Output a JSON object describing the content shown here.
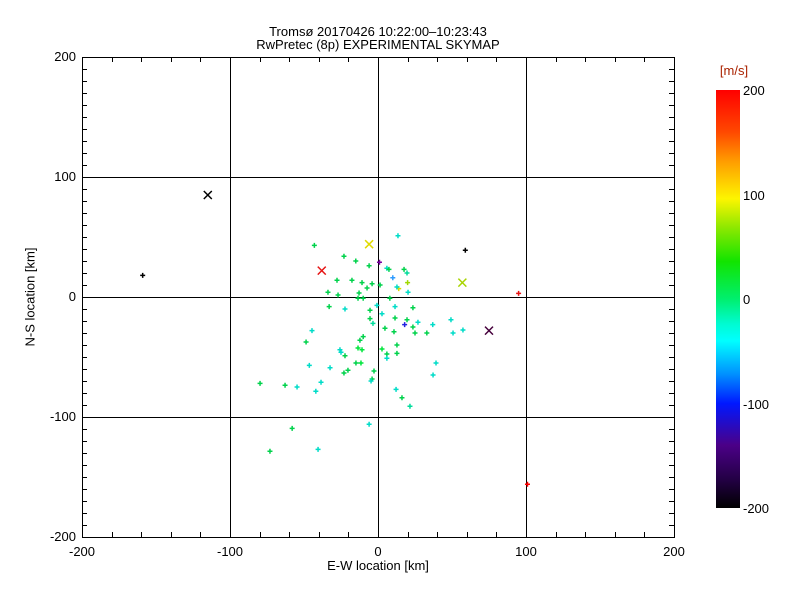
{
  "titles": {
    "line1": "Tromsø 20170426 10:22:00–10:23:43",
    "line2": "RwPretec (8p) EXPERIMENTAL SKYMAP"
  },
  "chart_data": {
    "type": "scatter",
    "title": "Tromsø 20170426 10:22:00–10:23:43 RwPretec (8p) EXPERIMENTAL SKYMAP",
    "xlabel": "E-W location [km]",
    "ylabel": "N-S location [km]",
    "xlim": [
      -200,
      200
    ],
    "ylim": [
      -200,
      200
    ],
    "xticks": [
      -200,
      -100,
      0,
      100,
      200
    ],
    "yticks": [
      -200,
      -100,
      0,
      100,
      200
    ],
    "x_minor_step": 20,
    "y_minor_step": 10,
    "grid": true,
    "axis_color": "#000000",
    "colorbar": {
      "label": "[m/s]",
      "label_color": "#aa2200",
      "min": -200,
      "max": 200,
      "ticks": [
        200,
        100,
        0,
        -100,
        -200
      ],
      "gradient": [
        [
          "0%",
          "#ff0000"
        ],
        [
          "10%",
          "#ff4800"
        ],
        [
          "17%",
          "#ff9c00"
        ],
        [
          "26%",
          "#fdf500"
        ],
        [
          "33%",
          "#8ce800"
        ],
        [
          "41%",
          "#12e400"
        ],
        [
          "50%",
          "#00ef6e"
        ],
        [
          "56%",
          "#00fbd2"
        ],
        [
          "60%",
          "#00ffff"
        ],
        [
          "68%",
          "#0090ff"
        ],
        [
          "75%",
          "#0018ff"
        ],
        [
          "85%",
          "#4b0087"
        ],
        [
          "93%",
          "#240046"
        ],
        [
          "100%",
          "#000000"
        ]
      ]
    },
    "points": [
      {
        "x": -115,
        "y": 85,
        "c": "#000000",
        "m": "x"
      },
      {
        "x": -159,
        "y": 18,
        "c": "#000000",
        "m": "+"
      },
      {
        "x": -38,
        "y": 22,
        "c": "#e61414",
        "m": "x"
      },
      {
        "x": -6,
        "y": 44,
        "c": "#e0da00",
        "m": "x"
      },
      {
        "x": 57,
        "y": 12,
        "c": "#a8d400",
        "m": "x"
      },
      {
        "x": 75,
        "y": -28,
        "c": "#46003c",
        "m": "x"
      },
      {
        "x": 59,
        "y": 39,
        "c": "#000000",
        "m": "+"
      },
      {
        "x": 95,
        "y": 3,
        "c": "#e61414",
        "m": "+"
      },
      {
        "x": 101,
        "y": -156,
        "c": "#ff0000",
        "m": "+"
      },
      {
        "x": 1,
        "y": 29,
        "c": "#7a00a0",
        "m": "+"
      },
      {
        "x": 18,
        "y": -23,
        "c": "#2222e0",
        "m": "+"
      },
      {
        "x": 10,
        "y": 16,
        "c": "#2e9bff",
        "m": "+"
      },
      {
        "x": 14,
        "y": 7,
        "c": "#ded800",
        "m": "+"
      },
      {
        "x": 20,
        "y": 12,
        "c": "#a0d800",
        "m": "+"
      },
      {
        "x": 13.5,
        "y": 51,
        "c": "#00dcc8",
        "m": "+"
      },
      {
        "x": -43,
        "y": 43,
        "c": "#00d24b",
        "m": "+"
      },
      {
        "x": -23,
        "y": 34,
        "c": "#00d24b",
        "m": "+"
      },
      {
        "x": -15,
        "y": 30,
        "c": "#00d24b",
        "m": "+"
      },
      {
        "x": -6,
        "y": 26,
        "c": "#00d24b",
        "m": "+"
      },
      {
        "x": 6,
        "y": 24,
        "c": "#00dcc8",
        "m": "+"
      },
      {
        "x": 17.6,
        "y": 23,
        "c": "#00d24b",
        "m": "+"
      },
      {
        "x": 7.4,
        "y": 23,
        "c": "#00d24b",
        "m": "+"
      },
      {
        "x": 19.6,
        "y": 20,
        "c": "#00dc9c",
        "m": "+"
      },
      {
        "x": -27.7,
        "y": 14,
        "c": "#00d24b",
        "m": "+"
      },
      {
        "x": -17.6,
        "y": 14,
        "c": "#00d24b",
        "m": "+"
      },
      {
        "x": -10.8,
        "y": 12,
        "c": "#00d24b",
        "m": "+"
      },
      {
        "x": -4,
        "y": 11,
        "c": "#00d24b",
        "m": "+"
      },
      {
        "x": 1.4,
        "y": 10,
        "c": "#00d24b",
        "m": "+"
      },
      {
        "x": -7.4,
        "y": 7.5,
        "c": "#00d24b",
        "m": "+"
      },
      {
        "x": 12.8,
        "y": 8.3,
        "c": "#00dcc8",
        "m": "+"
      },
      {
        "x": -33.8,
        "y": 4,
        "c": "#00d24b",
        "m": "+"
      },
      {
        "x": -12.8,
        "y": 3.3,
        "c": "#00d24b",
        "m": "+"
      },
      {
        "x": -27,
        "y": 1.7,
        "c": "#00d24b",
        "m": "+"
      },
      {
        "x": 20.3,
        "y": 4,
        "c": "#00dcc8",
        "m": "+"
      },
      {
        "x": -13.5,
        "y": -1,
        "c": "#00d24b",
        "m": "+"
      },
      {
        "x": -10,
        "y": -1,
        "c": "#00d24b",
        "m": "+"
      },
      {
        "x": 8,
        "y": -1,
        "c": "#00d24b",
        "m": "+"
      },
      {
        "x": -33,
        "y": -8,
        "c": "#00d24b",
        "m": "+"
      },
      {
        "x": -22.3,
        "y": -10,
        "c": "#00dcc8",
        "m": "+"
      },
      {
        "x": 11.5,
        "y": -8,
        "c": "#00dcc8",
        "m": "+"
      },
      {
        "x": -0.7,
        "y": -7,
        "c": "#00dcc8",
        "m": "+"
      },
      {
        "x": 23.6,
        "y": -9,
        "c": "#00d24b",
        "m": "+"
      },
      {
        "x": -5.4,
        "y": -11,
        "c": "#00d24b",
        "m": "+"
      },
      {
        "x": 2.7,
        "y": -14,
        "c": "#00dcc8",
        "m": "+"
      },
      {
        "x": -5.4,
        "y": -18,
        "c": "#00d24b",
        "m": "+"
      },
      {
        "x": 11.5,
        "y": -17.5,
        "c": "#00d24b",
        "m": "+"
      },
      {
        "x": 19.6,
        "y": -19,
        "c": "#00d24b",
        "m": "+"
      },
      {
        "x": 27,
        "y": -21,
        "c": "#00dcc8",
        "m": "+"
      },
      {
        "x": -3.4,
        "y": -22,
        "c": "#00dc9c",
        "m": "+"
      },
      {
        "x": -44.6,
        "y": -28,
        "c": "#00dcc8",
        "m": "+"
      },
      {
        "x": 4.7,
        "y": -26,
        "c": "#00d24b",
        "m": "+"
      },
      {
        "x": 23.6,
        "y": -25,
        "c": "#00d24b",
        "m": "+"
      },
      {
        "x": 10.8,
        "y": -29,
        "c": "#00d24b",
        "m": "+"
      },
      {
        "x": 25,
        "y": -30,
        "c": "#00d24b",
        "m": "+"
      },
      {
        "x": 33,
        "y": -30,
        "c": "#00d24b",
        "m": "+"
      },
      {
        "x": 37,
        "y": -23,
        "c": "#00dcc8",
        "m": "+"
      },
      {
        "x": 49.3,
        "y": -19,
        "c": "#00dcc8",
        "m": "+"
      },
      {
        "x": 50.7,
        "y": -30,
        "c": "#00dcc8",
        "m": "+"
      },
      {
        "x": 57.4,
        "y": -27.5,
        "c": "#00dcc8",
        "m": "+"
      },
      {
        "x": -48.6,
        "y": -37.5,
        "c": "#00d24b",
        "m": "+"
      },
      {
        "x": -10,
        "y": -33,
        "c": "#00d24b",
        "m": "+"
      },
      {
        "x": -12.2,
        "y": -36,
        "c": "#00d24b",
        "m": "+"
      },
      {
        "x": -25.7,
        "y": -44,
        "c": "#00dcc8",
        "m": "+"
      },
      {
        "x": -13.5,
        "y": -42.5,
        "c": "#00e63c",
        "m": "+"
      },
      {
        "x": -10.8,
        "y": -44,
        "c": "#00e63c",
        "m": "+"
      },
      {
        "x": -25,
        "y": -46,
        "c": "#00dcc8",
        "m": "+"
      },
      {
        "x": -22.3,
        "y": -49,
        "c": "#00d24b",
        "m": "+"
      },
      {
        "x": 6,
        "y": -47.5,
        "c": "#00d24b",
        "m": "+"
      },
      {
        "x": 12.8,
        "y": -47,
        "c": "#00d24b",
        "m": "+"
      },
      {
        "x": 2.7,
        "y": -43.3,
        "c": "#00e63c",
        "m": "+"
      },
      {
        "x": 12.8,
        "y": -40,
        "c": "#00d24b",
        "m": "+"
      },
      {
        "x": -14.9,
        "y": -55,
        "c": "#00d24b",
        "m": "+"
      },
      {
        "x": -11.5,
        "y": -55,
        "c": "#00e63c",
        "m": "+"
      },
      {
        "x": -32.4,
        "y": -59,
        "c": "#00dcc8",
        "m": "+"
      },
      {
        "x": -20.3,
        "y": -61,
        "c": "#00d24b",
        "m": "+"
      },
      {
        "x": -2.7,
        "y": -61.7,
        "c": "#00d24b",
        "m": "+"
      },
      {
        "x": -4,
        "y": -68.3,
        "c": "#00d24b",
        "m": "+"
      },
      {
        "x": 6,
        "y": -51,
        "c": "#00dcc8",
        "m": "+"
      },
      {
        "x": -46.4,
        "y": -57,
        "c": "#00dcc8",
        "m": "+"
      },
      {
        "x": -23,
        "y": -63.3,
        "c": "#00d24b",
        "m": "+"
      },
      {
        "x": -4.7,
        "y": -70,
        "c": "#00dcc8",
        "m": "+"
      },
      {
        "x": -38.5,
        "y": -71,
        "c": "#00dcc8",
        "m": "+"
      },
      {
        "x": -42,
        "y": -78.5,
        "c": "#00dcc8",
        "m": "+"
      },
      {
        "x": 12.2,
        "y": -77,
        "c": "#00dcc8",
        "m": "+"
      },
      {
        "x": 39.2,
        "y": -55,
        "c": "#00dcc8",
        "m": "+"
      },
      {
        "x": 37.2,
        "y": -65,
        "c": "#00dcc8",
        "m": "+"
      },
      {
        "x": -79.7,
        "y": -72,
        "c": "#00d24b",
        "m": "+"
      },
      {
        "x": -62.8,
        "y": -73.5,
        "c": "#00d24b",
        "m": "+"
      },
      {
        "x": -54.7,
        "y": -75,
        "c": "#00dcc8",
        "m": "+"
      },
      {
        "x": 16.2,
        "y": -84,
        "c": "#00d24b",
        "m": "+"
      },
      {
        "x": 21.6,
        "y": -91,
        "c": "#00dc9c",
        "m": "+"
      },
      {
        "x": -6,
        "y": -106,
        "c": "#00dcc8",
        "m": "+"
      },
      {
        "x": -58,
        "y": -109.5,
        "c": "#00d24b",
        "m": "+"
      },
      {
        "x": -73,
        "y": -128.5,
        "c": "#00d24b",
        "m": "+"
      },
      {
        "x": -40.5,
        "y": -127,
        "c": "#00dcc8",
        "m": "+"
      }
    ]
  }
}
